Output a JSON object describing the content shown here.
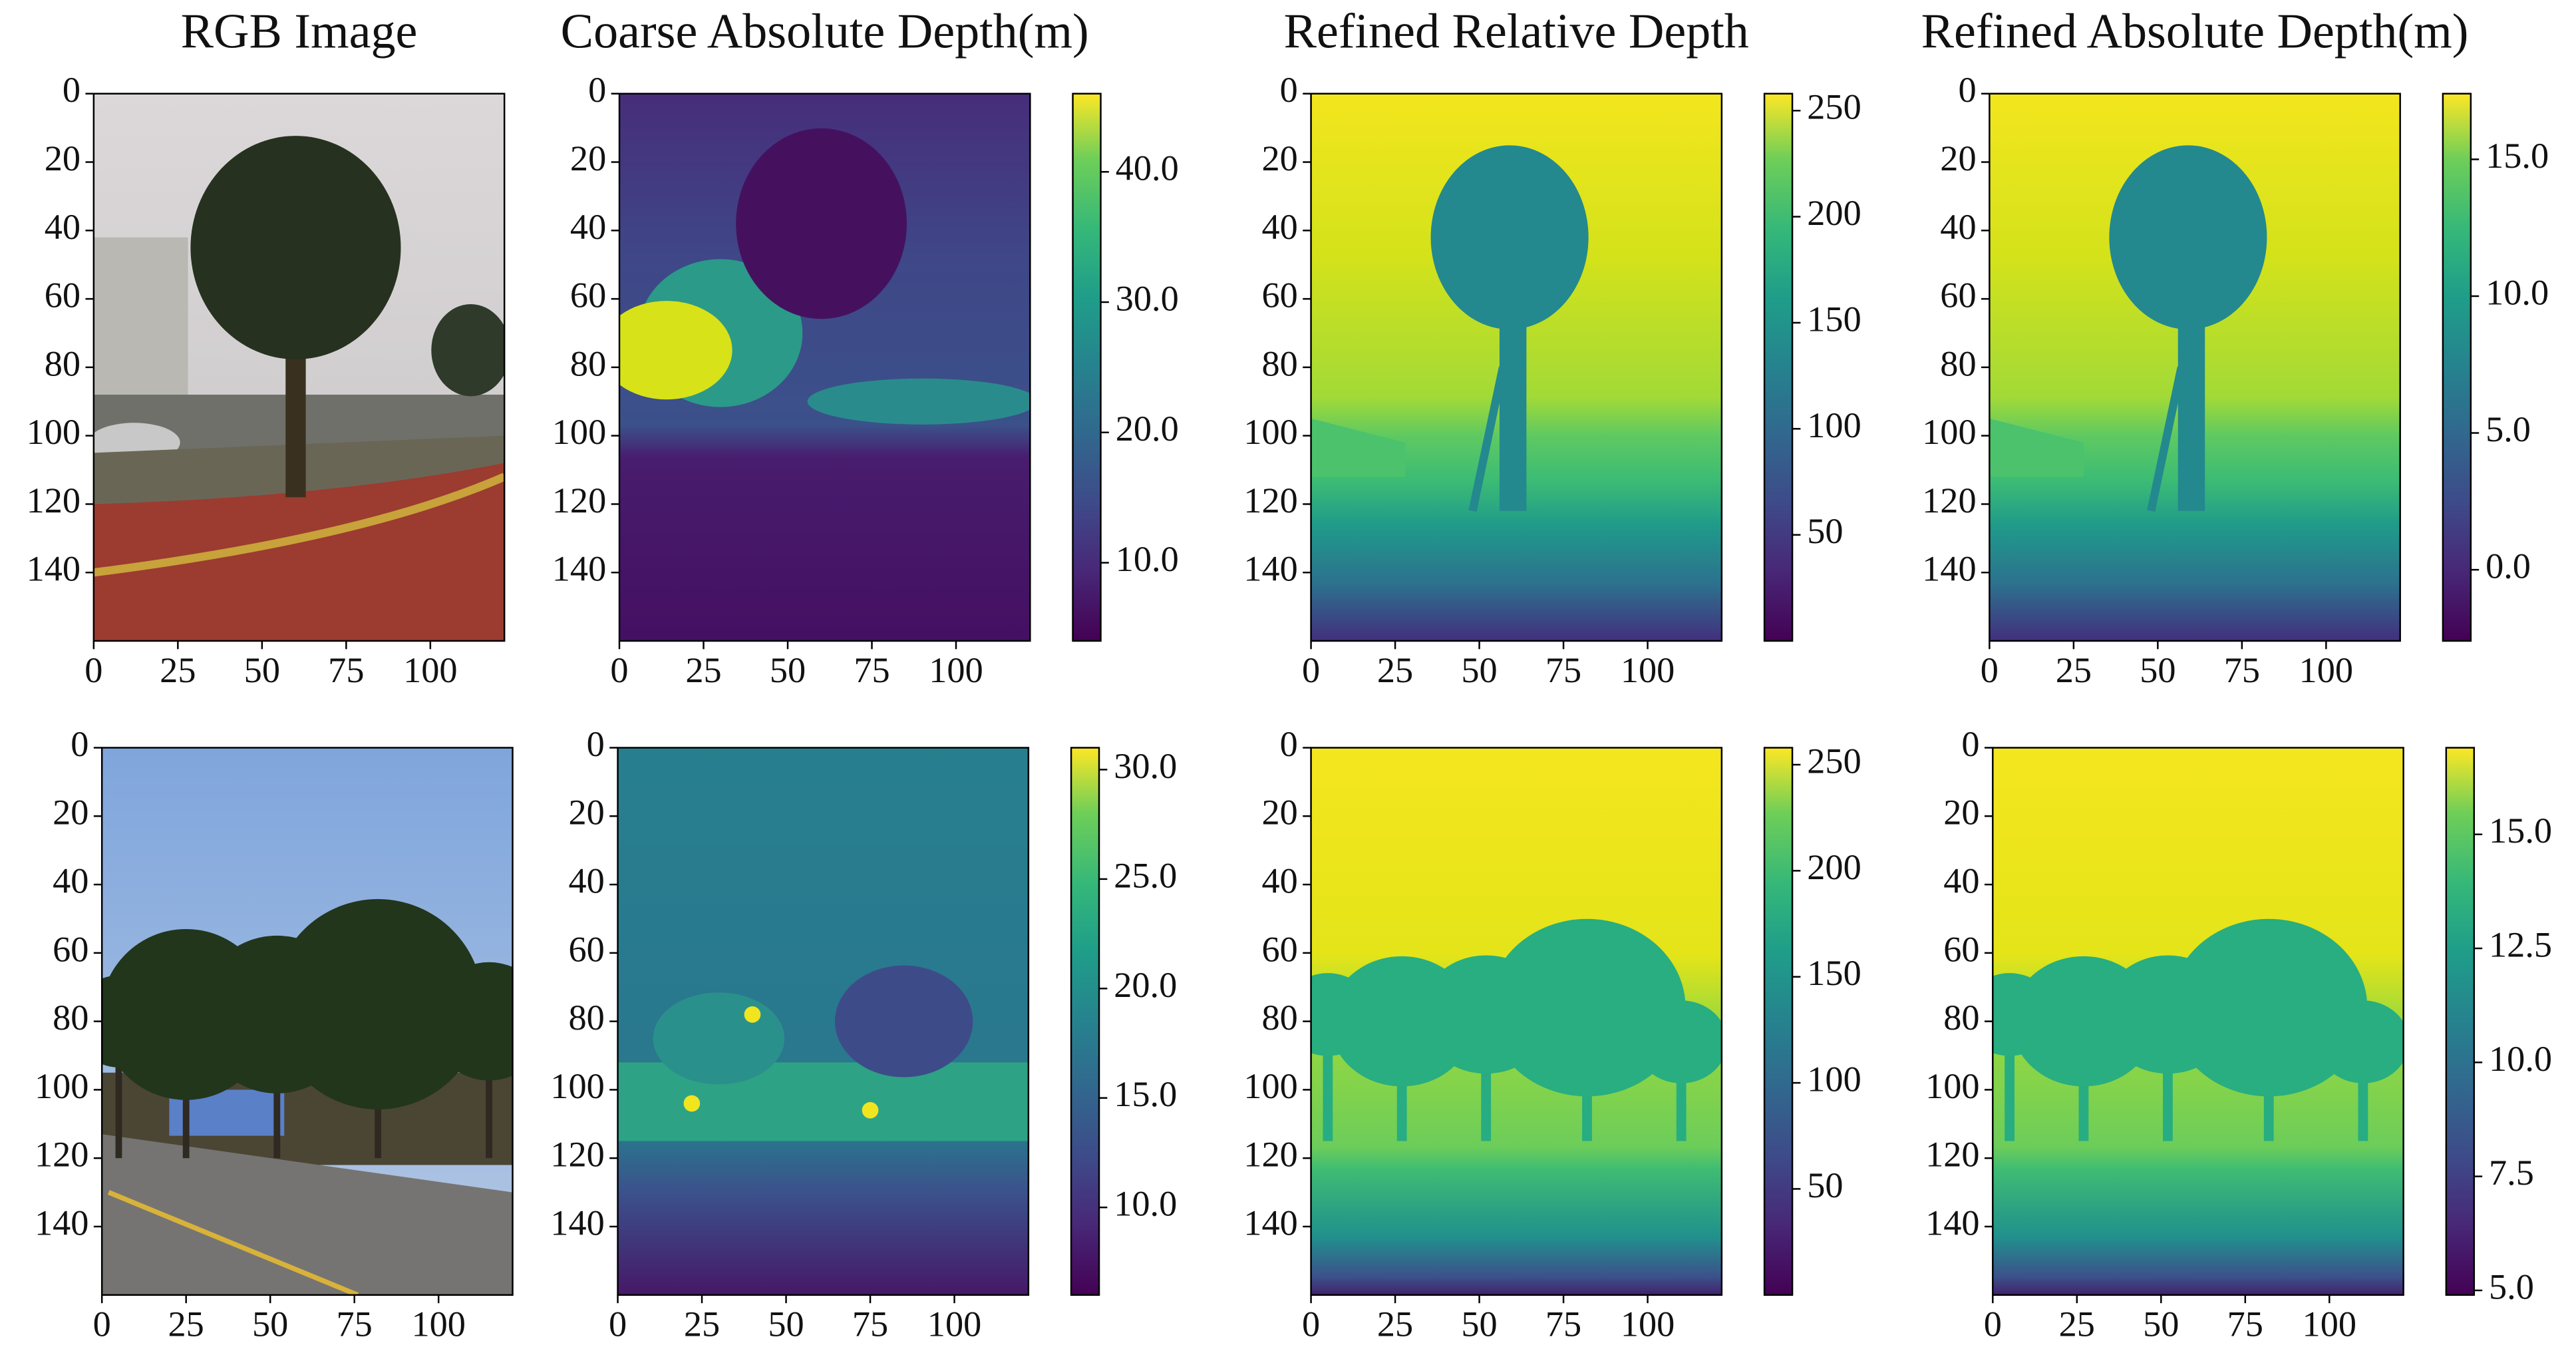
{
  "chart_data": [
    {
      "type": "image",
      "title": "RGB Image",
      "scene": "street-tree",
      "xlim": [
        0,
        122
      ],
      "ylim": [
        160,
        0
      ],
      "xticks": [
        0,
        25,
        50,
        75,
        100
      ],
      "yticks": [
        0,
        20,
        40,
        60,
        80,
        100,
        120,
        140
      ]
    },
    {
      "type": "heatmap",
      "title": "Coarse Absolute Depth(m)",
      "scene": "coarse-tree",
      "colormap": "viridis",
      "xlim": [
        0,
        122
      ],
      "ylim": [
        160,
        0
      ],
      "xticks": [
        0,
        25,
        50,
        75,
        100
      ],
      "yticks": [
        0,
        20,
        40,
        60,
        80,
        100,
        120,
        140
      ],
      "clim": [
        4,
        46
      ],
      "cticks": [
        {
          "value": 10,
          "label": "10.0"
        },
        {
          "value": 20,
          "label": "20.0"
        },
        {
          "value": 30,
          "label": "30.0"
        },
        {
          "value": 40,
          "label": "40.0"
        }
      ]
    },
    {
      "type": "heatmap",
      "title": "Refined Relative Depth",
      "scene": "refined-tree",
      "colormap": "viridis",
      "xlim": [
        0,
        122
      ],
      "ylim": [
        160,
        0
      ],
      "xticks": [
        0,
        25,
        50,
        75,
        100
      ],
      "yticks": [
        0,
        20,
        40,
        60,
        80,
        100,
        120,
        140
      ],
      "clim": [
        0,
        258
      ],
      "cticks": [
        50,
        100,
        150,
        200,
        250
      ]
    },
    {
      "type": "heatmap",
      "title": "Refined Absolute Depth(m)",
      "scene": "refined-tree",
      "colormap": "viridis",
      "xlim": [
        0,
        122
      ],
      "ylim": [
        160,
        0
      ],
      "xticks": [
        0,
        25,
        50,
        75,
        100
      ],
      "yticks": [
        0,
        20,
        40,
        60,
        80,
        100,
        120,
        140
      ],
      "clim": [
        -2.6,
        17.4
      ],
      "cticks": [
        {
          "value": 0,
          "label": "0.0"
        },
        {
          "value": 5,
          "label": "5.0"
        },
        {
          "value": 10,
          "label": "10.0"
        },
        {
          "value": 15,
          "label": "15.0"
        }
      ]
    },
    {
      "type": "image",
      "scene": "street-row",
      "xlim": [
        0,
        122
      ],
      "ylim": [
        160,
        0
      ],
      "xticks": [
        0,
        25,
        50,
        75,
        100
      ],
      "yticks": [
        0,
        20,
        40,
        60,
        80,
        100,
        120,
        140
      ]
    },
    {
      "type": "heatmap",
      "scene": "coarse-row",
      "colormap": "viridis",
      "xlim": [
        0,
        122
      ],
      "ylim": [
        160,
        0
      ],
      "xticks": [
        0,
        25,
        50,
        75,
        100
      ],
      "yticks": [
        0,
        20,
        40,
        60,
        80,
        100,
        120,
        140
      ],
      "clim": [
        6,
        31
      ],
      "cticks": [
        {
          "value": 10,
          "label": "10.0"
        },
        {
          "value": 15,
          "label": "15.0"
        },
        {
          "value": 20,
          "label": "20.0"
        },
        {
          "value": 25,
          "label": "25.0"
        },
        {
          "value": 30,
          "label": "30.0"
        }
      ]
    },
    {
      "type": "heatmap",
      "scene": "refined-row",
      "colormap": "viridis",
      "xlim": [
        0,
        122
      ],
      "ylim": [
        160,
        0
      ],
      "xticks": [
        0,
        25,
        50,
        75,
        100
      ],
      "yticks": [
        0,
        20,
        40,
        60,
        80,
        100,
        120,
        140
      ],
      "clim": [
        0,
        258
      ],
      "cticks": [
        50,
        100,
        150,
        200,
        250
      ]
    },
    {
      "type": "heatmap",
      "scene": "refined-row",
      "colormap": "viridis",
      "xlim": [
        0,
        122
      ],
      "ylim": [
        160,
        0
      ],
      "xticks": [
        0,
        25,
        50,
        75,
        100
      ],
      "yticks": [
        0,
        20,
        40,
        60,
        80,
        100,
        120,
        140
      ],
      "clim": [
        4.9,
        16.9
      ],
      "cticks": [
        {
          "value": 5,
          "label": "5.0"
        },
        7.5,
        {
          "value": 10,
          "label": "10.0"
        },
        12.5,
        {
          "value": 15,
          "label": "15.0"
        }
      ]
    }
  ]
}
